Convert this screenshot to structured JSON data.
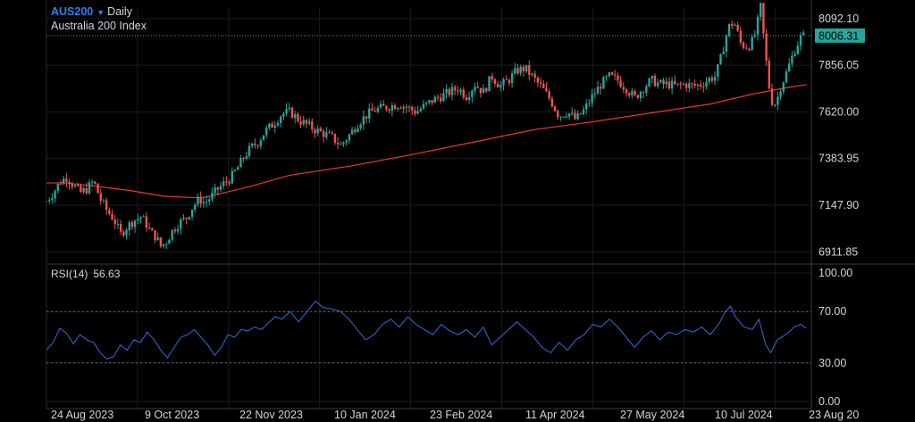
{
  "header": {
    "symbol": "AUS200",
    "period": "Daily",
    "instrument": "Australia 200 Index"
  },
  "rsi_panel": {
    "label": "RSI(14)",
    "value": "56.63"
  },
  "price_axis": {
    "ticks": [
      "8092.10",
      "7856.05",
      "7620.00",
      "7383.95",
      "7147.90",
      "6911.85"
    ],
    "last_price": "8006.31"
  },
  "rsi_axis": {
    "ticks": [
      "100.00",
      "70.00",
      "30.00",
      "0.00"
    ]
  },
  "time_axis": {
    "labels": [
      "24 Aug 2023",
      "9 Oct 2023",
      "22 Nov 2023",
      "10 Jan 2024",
      "23 Feb 2024",
      "11 Apr 2024",
      "27 May 2024",
      "10 Jul 2024",
      "23 Aug 20"
    ]
  },
  "colors": {
    "background": "#000000",
    "up_candle": "#26a69a",
    "down_candle": "#ef5350",
    "moving_average": "#e53935",
    "rsi_line": "#2f6fd6",
    "accent": "#2f80ed",
    "grid": "#1c1c1c"
  },
  "chart_data": [
    {
      "type": "candlestick",
      "title": "Australia 200 Index",
      "period": "Daily",
      "ylim": [
        6850,
        8150
      ],
      "last_price": 8006.31,
      "moving_average": {
        "points": [
          [
            0,
            7260
          ],
          [
            20,
            7262
          ],
          [
            50,
            7248
          ],
          [
            100,
            7222
          ],
          [
            140,
            7193
          ],
          [
            185,
            7185
          ],
          [
            240,
            7240
          ],
          [
            290,
            7300
          ],
          [
            360,
            7345
          ],
          [
            430,
            7400
          ],
          [
            500,
            7460
          ],
          [
            580,
            7530
          ],
          [
            650,
            7570
          ],
          [
            720,
            7615
          ],
          [
            790,
            7660
          ],
          [
            840,
            7710
          ],
          [
            880,
            7742
          ],
          [
            905,
            7758
          ]
        ]
      },
      "series_close": [
        [
          0,
          7170
        ],
        [
          8,
          7210
        ],
        [
          16,
          7265
        ],
        [
          24,
          7290
        ],
        [
          32,
          7250
        ],
        [
          40,
          7210
        ],
        [
          48,
          7230
        ],
        [
          56,
          7270
        ],
        [
          64,
          7180
        ],
        [
          72,
          7120
        ],
        [
          80,
          7080
        ],
        [
          88,
          7000
        ],
        [
          96,
          7040
        ],
        [
          104,
          7070
        ],
        [
          112,
          7090
        ],
        [
          118,
          7060
        ],
        [
          124,
          7010
        ],
        [
          130,
          6990
        ],
        [
          136,
          6940
        ],
        [
          142,
          6960
        ],
        [
          150,
          7020
        ],
        [
          158,
          7060
        ],
        [
          166,
          7080
        ],
        [
          174,
          7140
        ],
        [
          182,
          7180
        ],
        [
          188,
          7160
        ],
        [
          196,
          7190
        ],
        [
          204,
          7230
        ],
        [
          212,
          7260
        ],
        [
          220,
          7290
        ],
        [
          228,
          7340
        ],
        [
          236,
          7400
        ],
        [
          244,
          7440
        ],
        [
          252,
          7470
        ],
        [
          260,
          7520
        ],
        [
          270,
          7560
        ],
        [
          280,
          7610
        ],
        [
          290,
          7620
        ],
        [
          300,
          7580
        ],
        [
          310,
          7555
        ],
        [
          320,
          7530
        ],
        [
          330,
          7510
        ],
        [
          340,
          7490
        ],
        [
          350,
          7450
        ],
        [
          360,
          7500
        ],
        [
          370,
          7560
        ],
        [
          380,
          7600
        ],
        [
          390,
          7630
        ],
        [
          400,
          7640
        ],
        [
          410,
          7650
        ],
        [
          420,
          7660
        ],
        [
          430,
          7640
        ],
        [
          440,
          7620
        ],
        [
          450,
          7650
        ],
        [
          460,
          7680
        ],
        [
          470,
          7700
        ],
        [
          480,
          7720
        ],
        [
          490,
          7740
        ],
        [
          500,
          7700
        ],
        [
          510,
          7760
        ],
        [
          520,
          7720
        ],
        [
          530,
          7800
        ],
        [
          540,
          7750
        ],
        [
          550,
          7780
        ],
        [
          560,
          7830
        ],
        [
          570,
          7840
        ],
        [
          580,
          7790
        ],
        [
          590,
          7740
        ],
        [
          600,
          7680
        ],
        [
          610,
          7600
        ],
        [
          620,
          7620
        ],
        [
          630,
          7580
        ],
        [
          640,
          7630
        ],
        [
          650,
          7700
        ],
        [
          660,
          7760
        ],
        [
          670,
          7800
        ],
        [
          680,
          7780
        ],
        [
          690,
          7740
        ],
        [
          700,
          7690
        ],
        [
          710,
          7740
        ],
        [
          720,
          7780
        ],
        [
          730,
          7760
        ],
        [
          740,
          7760
        ],
        [
          750,
          7750
        ],
        [
          760,
          7760
        ],
        [
          770,
          7750
        ],
        [
          780,
          7760
        ],
        [
          790,
          7790
        ],
        [
          796,
          7800
        ],
        [
          802,
          7880
        ],
        [
          808,
          7990
        ],
        [
          814,
          8070
        ],
        [
          820,
          8060
        ],
        [
          826,
          7970
        ],
        [
          832,
          7950
        ],
        [
          838,
          7960
        ],
        [
          844,
          8020
        ],
        [
          850,
          8150
        ],
        [
          856,
          7900
        ],
        [
          862,
          7680
        ],
        [
          868,
          7660
        ],
        [
          874,
          7750
        ],
        [
          880,
          7810
        ],
        [
          886,
          7880
        ],
        [
          892,
          7950
        ],
        [
          898,
          8000
        ],
        [
          904,
          8006
        ]
      ]
    },
    {
      "type": "line",
      "title": "RSI(14)",
      "ylim": [
        0,
        100
      ],
      "levels": [
        70,
        30
      ],
      "last_value": 56.63,
      "series": [
        {
          "name": "RSI(14)",
          "points": [
            [
              0,
              40
            ],
            [
              8,
              46
            ],
            [
              16,
              57
            ],
            [
              24,
              53
            ],
            [
              32,
              45
            ],
            [
              40,
              52
            ],
            [
              48,
              48
            ],
            [
              56,
              46
            ],
            [
              64,
              38
            ],
            [
              72,
              33
            ],
            [
              80,
              35
            ],
            [
              88,
              44
            ],
            [
              96,
              40
            ],
            [
              104,
              48
            ],
            [
              112,
              46
            ],
            [
              120,
              54
            ],
            [
              128,
              48
            ],
            [
              136,
              40
            ],
            [
              144,
              34
            ],
            [
              152,
              42
            ],
            [
              160,
              50
            ],
            [
              168,
              52
            ],
            [
              176,
              56
            ],
            [
              184,
              50
            ],
            [
              192,
              44
            ],
            [
              200,
              36
            ],
            [
              208,
              42
            ],
            [
              216,
              52
            ],
            [
              224,
              50
            ],
            [
              232,
              56
            ],
            [
              240,
              55
            ],
            [
              248,
              58
            ],
            [
              256,
              56
            ],
            [
              264,
              61
            ],
            [
              272,
              66
            ],
            [
              280,
              64
            ],
            [
              290,
              70
            ],
            [
              300,
              62
            ],
            [
              310,
              70
            ],
            [
              320,
              78
            ],
            [
              330,
              73
            ],
            [
              340,
              72
            ],
            [
              350,
              70
            ],
            [
              360,
              64
            ],
            [
              370,
              56
            ],
            [
              380,
              48
            ],
            [
              390,
              52
            ],
            [
              400,
              60
            ],
            [
              410,
              64
            ],
            [
              420,
              58
            ],
            [
              430,
              66
            ],
            [
              440,
              60
            ],
            [
              450,
              56
            ],
            [
              460,
              52
            ],
            [
              470,
              60
            ],
            [
              480,
              55
            ],
            [
              490,
              52
            ],
            [
              500,
              56
            ],
            [
              510,
              50
            ],
            [
              520,
              58
            ],
            [
              530,
              44
            ],
            [
              540,
              50
            ],
            [
              550,
              56
            ],
            [
              560,
              62
            ],
            [
              570,
              56
            ],
            [
              580,
              50
            ],
            [
              590,
              42
            ],
            [
              600,
              38
            ],
            [
              610,
              46
            ],
            [
              620,
              40
            ],
            [
              630,
              48
            ],
            [
              640,
              52
            ],
            [
              650,
              60
            ],
            [
              660,
              58
            ],
            [
              670,
              64
            ],
            [
              680,
              58
            ],
            [
              690,
              50
            ],
            [
              700,
              42
            ],
            [
              710,
              50
            ],
            [
              720,
              55
            ],
            [
              730,
              48
            ],
            [
              740,
              54
            ],
            [
              750,
              52
            ],
            [
              760,
              56
            ],
            [
              770,
              54
            ],
            [
              780,
              58
            ],
            [
              790,
              52
            ],
            [
              800,
              60
            ],
            [
              808,
              70
            ],
            [
              814,
              74
            ],
            [
              820,
              66
            ],
            [
              830,
              58
            ],
            [
              840,
              56
            ],
            [
              848,
              64
            ],
            [
              856,
              44
            ],
            [
              862,
              38
            ],
            [
              870,
              48
            ],
            [
              880,
              52
            ],
            [
              890,
              58
            ],
            [
              898,
              60
            ],
            [
              904,
              57
            ]
          ]
        }
      ]
    }
  ]
}
